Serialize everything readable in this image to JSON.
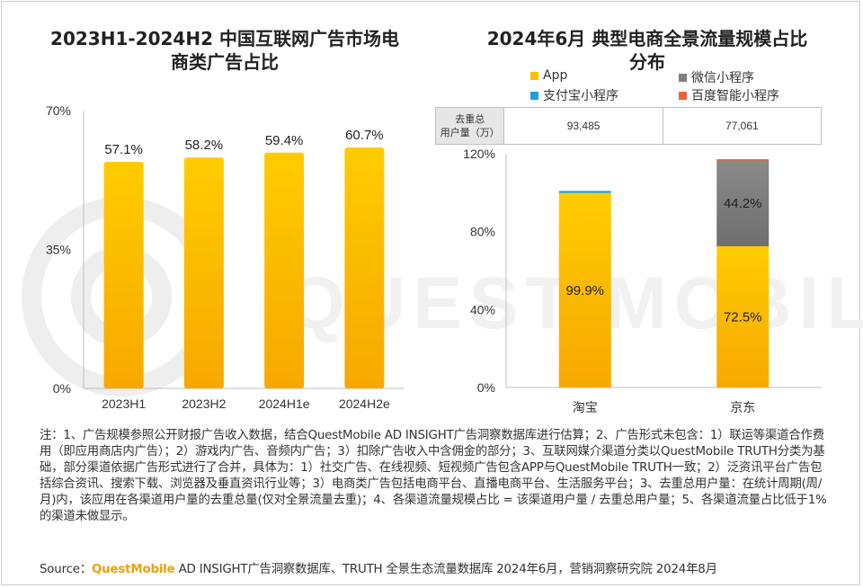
{
  "left_chart": {
    "title_line1": "2023H1-2024H2 中国互联网广告市场电",
    "title_line2": "商类广告占比"
  },
  "right_chart": {
    "title_line1": "2024年6月 典型电商全景流量规模占比",
    "title_line2": "分布"
  },
  "legend": {
    "app": "App",
    "wechat": "微信小程序",
    "alipay": "支付宝小程序",
    "baidu": "百度智能小程序"
  },
  "users_table": {
    "header": "去重总\n用户量（万）",
    "values": [
      "93,485",
      "77,061"
    ]
  },
  "chart_data": [
    {
      "type": "bar",
      "title": "2023H1-2024H2 中国互联网广告市场电商类广告占比",
      "categories": [
        "2023H1",
        "2023H2",
        "2024H1e",
        "2024H2e"
      ],
      "values": [
        57.1,
        58.2,
        59.4,
        60.7
      ],
      "data_labels": [
        "57.1%",
        "58.2%",
        "59.4%",
        "60.7%"
      ],
      "ylim": [
        0,
        70
      ],
      "yticks": [
        "0%",
        "35%",
        "70%"
      ],
      "grid": false,
      "color": "#FFC000"
    },
    {
      "type": "bar",
      "stacked": true,
      "title": "2024年6月 典型电商全景流量规模占比分布",
      "categories": [
        "淘宝",
        "京东"
      ],
      "series": [
        {
          "name": "App",
          "values": [
            99.9,
            72.5
          ],
          "labels": [
            "99.9%",
            "72.5%"
          ],
          "color": "#FFC000"
        },
        {
          "name": "微信小程序",
          "values": [
            0,
            44.2
          ],
          "labels": [
            "",
            "44.2%"
          ],
          "color": "#7F7F7F"
        },
        {
          "name": "支付宝小程序",
          "values": [
            1.0,
            0
          ],
          "labels": [
            "",
            ""
          ],
          "color": "#1BA1E2"
        },
        {
          "name": "百度智能小程序",
          "values": [
            0,
            0.5
          ],
          "labels": [
            "",
            ""
          ],
          "color": "#E8633A"
        }
      ],
      "ylim": [
        0,
        120
      ],
      "yticks": [
        "0%",
        "40%",
        "80%",
        "120%"
      ],
      "legend_position": "top",
      "grid": false
    }
  ],
  "notes": "注：1、广告规模参照公开财报广告收入数据，结合QuestMobile AD INSIGHT广告洞察数据库进行估算；2、广告形式未包含：1）联运等渠道合作费用（即应用商店内广告）；2）游戏内广告、音频内广告；3）扣除广告收入中含佣金的部分；3、互联网媒介渠道分类以QuestMobile TRUTH分类为基础，部分渠道依据广告形式进行了合并，具体为：1）社交广告、在线视频、短视频广告包含APP与QuestMobile TRUTH一致；2）泛资讯平台广告包括综合资讯、搜索下载、浏览器及垂直资讯行业等；3）电商类广告包括电商平台、直播电商平台、生活服务平台；3、去重总用户量：在统计周期(周/月)内，该应用在各渠道用户量的去重总量(仅对全景流量去重)；4、各渠道流量规模占比 = 该渠道用户量 / 去重总用户量；5、各渠道流量占比低于1%的渠道未做显示。",
  "source": {
    "label": "Source：",
    "brand": "QuestMobile",
    "text": " AD INSIGHT广告洞察数据库、TRUTH 全景生态流量数据库 2024年6月，营销洞察研究院 2024年8月"
  },
  "colors": {
    "bar_yellow": "#FFC000",
    "bar_yellow_dark": "#F5A800",
    "wechat_gray": "#7F7F7F",
    "alipay_blue": "#1BA1E2",
    "baidu_orange": "#E8633A"
  }
}
